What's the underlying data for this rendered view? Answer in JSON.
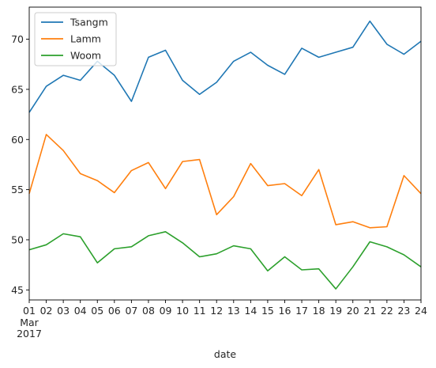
{
  "chart_data": {
    "type": "line",
    "xlabel": "date",
    "x": [
      "01",
      "02",
      "03",
      "04",
      "05",
      "06",
      "07",
      "08",
      "09",
      "10",
      "11",
      "12",
      "13",
      "14",
      "15",
      "16",
      "17",
      "18",
      "19",
      "20",
      "21",
      "22",
      "23",
      "24"
    ],
    "x_sublabel_month": "Mar",
    "x_sublabel_year": "2017",
    "ylim": [
      44,
      73.2
    ],
    "yticks": [
      45,
      50,
      55,
      60,
      65,
      70
    ],
    "grid": false,
    "legend": "top-left",
    "series": [
      {
        "name": "Tsangm",
        "color": "#1f77b4",
        "values": [
          62.7,
          65.3,
          66.4,
          65.9,
          67.8,
          66.4,
          63.8,
          68.2,
          68.9,
          65.9,
          64.5,
          65.7,
          67.8,
          68.7,
          67.4,
          66.5,
          69.1,
          68.2,
          68.7,
          69.2,
          71.8,
          69.5,
          68.5,
          69.8
        ]
      },
      {
        "name": "Lamm",
        "color": "#ff7f0e",
        "values": [
          54.6,
          60.5,
          58.9,
          56.6,
          55.9,
          54.7,
          56.9,
          57.7,
          55.1,
          57.8,
          58.0,
          52.5,
          54.3,
          57.6,
          55.4,
          55.6,
          54.4,
          57.0,
          51.5,
          51.8,
          51.2,
          51.3,
          56.4,
          54.6
        ]
      },
      {
        "name": "Woom",
        "color": "#2ca02c",
        "values": [
          49.0,
          49.5,
          50.6,
          50.3,
          47.7,
          49.1,
          49.3,
          50.4,
          50.8,
          49.7,
          48.3,
          48.6,
          49.4,
          49.1,
          46.9,
          48.3,
          47.0,
          47.1,
          45.1,
          47.3,
          49.8,
          49.3,
          48.5,
          47.3
        ]
      }
    ]
  }
}
